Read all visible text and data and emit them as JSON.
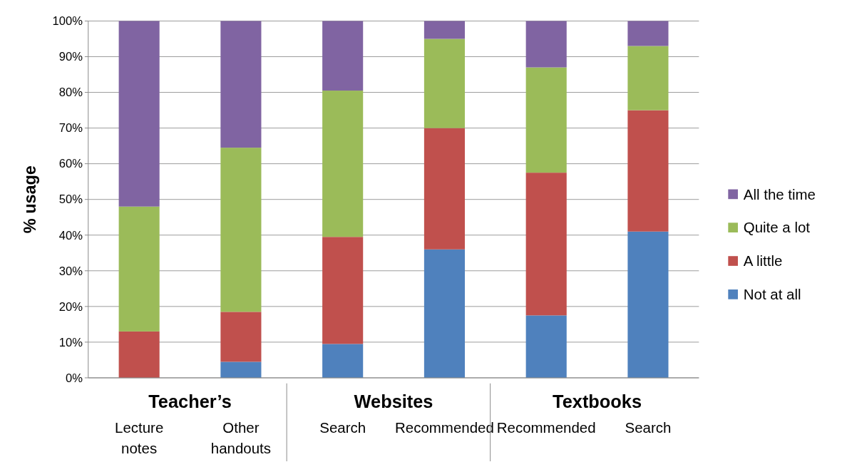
{
  "chart_data": {
    "type": "bar",
    "stacked": true,
    "ylabel": "% usage",
    "categories": [
      "Lecture notes",
      "Other handouts",
      "Search",
      "Recommended",
      "Recommended",
      "Search"
    ],
    "annotations": [
      "Teacher’s",
      "Websites",
      "Textbooks"
    ],
    "series": [
      {
        "name": "Not at all",
        "color": "#4f81bd",
        "values": [
          0,
          4.5,
          9.5,
          36,
          17.5,
          41
        ]
      },
      {
        "name": "A little",
        "color": "#c0504d",
        "values": [
          13,
          14,
          30,
          34,
          40,
          34
        ]
      },
      {
        "name": "Quite a lot",
        "color": "#9bbb59",
        "values": [
          35,
          46,
          41,
          25,
          29.5,
          18
        ]
      },
      {
        "name": "All the time",
        "color": "#8064a2",
        "values": [
          52,
          35.5,
          19.5,
          5,
          13,
          7
        ]
      }
    ],
    "ylim": [
      0,
      100
    ],
    "yticks": [
      {
        "value": 0,
        "label": "0%"
      },
      {
        "value": 10,
        "label": "10%"
      },
      {
        "value": 20,
        "label": "20%"
      },
      {
        "value": 30,
        "label": "30%"
      },
      {
        "value": 40,
        "label": "40%"
      },
      {
        "value": 50,
        "label": "50%"
      },
      {
        "value": 60,
        "label": "60%"
      },
      {
        "value": 70,
        "label": "70%"
      },
      {
        "value": 80,
        "label": "80%"
      },
      {
        "value": 90,
        "label": "90%"
      },
      {
        "value": 100,
        "label": "100%"
      }
    ],
    "grid": "y",
    "legend": "right"
  }
}
